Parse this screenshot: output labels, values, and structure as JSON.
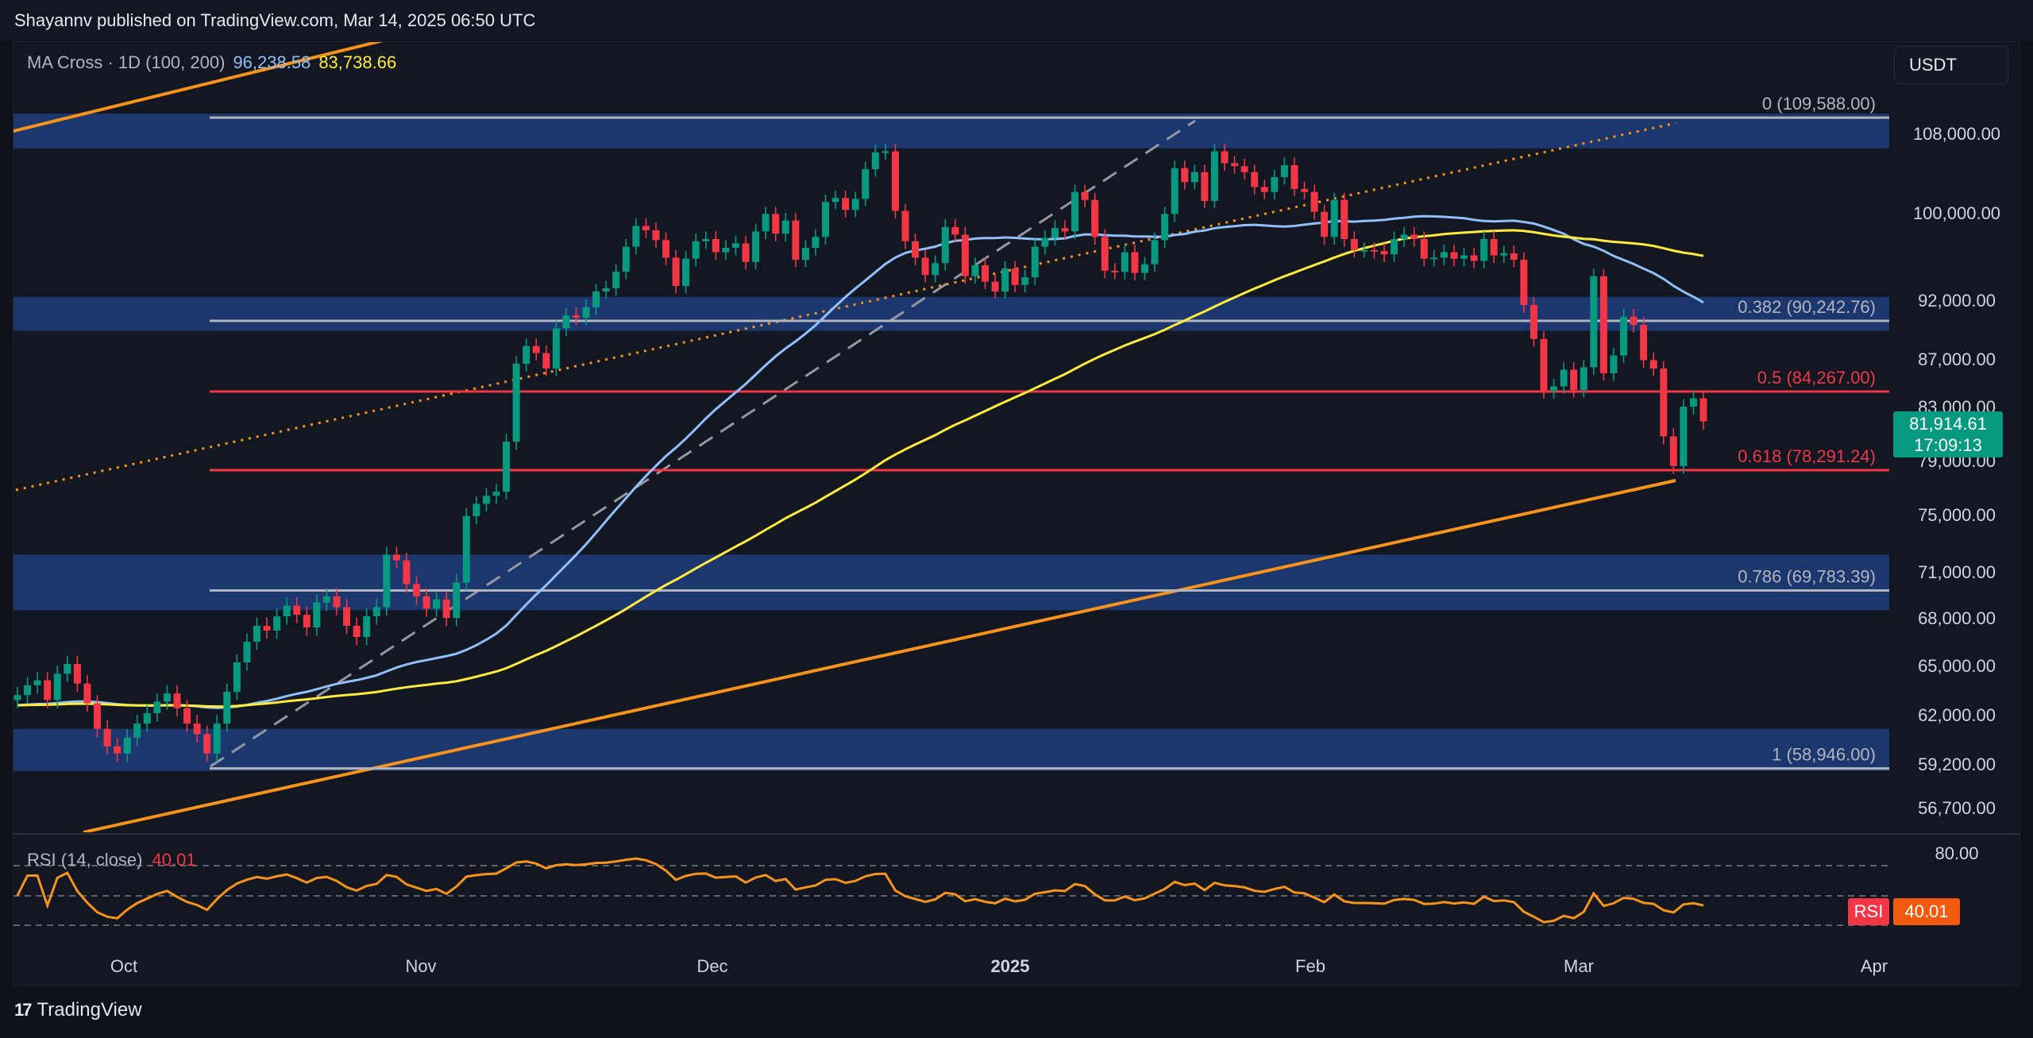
{
  "header": {
    "text": "Shayannv published on TradingView.com, Mar 14, 2025 06:50 UTC"
  },
  "indicator": {
    "name": "MA Cross · 1D (100, 200)",
    "ma100": "96,238.58",
    "ma200": "83,738.66"
  },
  "currency_button": {
    "label": "USDT"
  },
  "price_badge": {
    "price": "81,914.61",
    "countdown": "17:09:13",
    "color": "#089981"
  },
  "rsi": {
    "name": "RSI (14, close)",
    "value": "40.01",
    "badge_label": "RSI",
    "badge_value": "40.01",
    "color": "#f7931a"
  },
  "footer": {
    "brand": "TradingView",
    "logo": "17"
  },
  "chart_data": {
    "type": "candlestick",
    "y_axis_labels": [
      "108,000.00",
      "100,000.00",
      "92,000.00",
      "87,000.00",
      "83,000.00",
      "79,000.00",
      "75,000.00",
      "71,000.00",
      "68,000.00",
      "65,000.00",
      "62,000.00",
      "59,200.00",
      "56,700.00"
    ],
    "x_axis_labels": [
      "Oct",
      "Nov",
      "Dec",
      "2025",
      "Feb",
      "Mar",
      "Apr"
    ],
    "rsi_axis_labels": [
      "80.00"
    ],
    "fib_levels": [
      {
        "label": "0 (109,588.00)",
        "value": 109588,
        "color": "#b2b5be"
      },
      {
        "label": "0.382 (90,242.76)",
        "value": 90242.76,
        "color": "#b2b5be"
      },
      {
        "label": "0.5 (84,267.00)",
        "value": 84267,
        "color": "#f23645"
      },
      {
        "label": "0.618 (78,291.24)",
        "value": 78291.24,
        "color": "#f23645"
      },
      {
        "label": "0.786 (69,783.39)",
        "value": 69783.39,
        "color": "#b2b5be"
      },
      {
        "label": "1 (58,946.00)",
        "value": 58946,
        "color": "#b2b5be"
      }
    ],
    "zones": [
      {
        "low": 106500,
        "high": 110000
      },
      {
        "low": 89400,
        "high": 92300
      },
      {
        "low": 68500,
        "high": 72200
      },
      {
        "low": 58800,
        "high": 61200
      }
    ],
    "close": [
      63200,
      63800,
      64100,
      62900,
      64500,
      65100,
      63900,
      62700,
      61200,
      60200,
      59800,
      60700,
      61500,
      62100,
      62800,
      63300,
      62400,
      61500,
      60900,
      59800,
      61500,
      63400,
      65200,
      66500,
      67500,
      67200,
      68100,
      68800,
      68200,
      67400,
      69000,
      69400,
      68700,
      67500,
      66800,
      68100,
      68700,
      72200,
      71800,
      70200,
      69400,
      68600,
      69200,
      68000,
      70300,
      74900,
      75800,
      76400,
      76700,
      80400,
      86600,
      88100,
      87500,
      86200,
      89600,
      90700,
      90500,
      91400,
      92800,
      93100,
      94600,
      96900,
      98800,
      98400,
      97500,
      95900,
      93300,
      95800,
      97400,
      97600,
      96400,
      96800,
      97200,
      95500,
      98300,
      99900,
      98100,
      99300,
      95700,
      96800,
      97800,
      101100,
      101500,
      100300,
      101400,
      104400,
      106100,
      106200,
      100200,
      97400,
      95900,
      94300,
      95400,
      98700,
      98000,
      94200,
      95200,
      93700,
      92800,
      94900,
      93400,
      94100,
      96900,
      97700,
      98600,
      98300,
      102100,
      101300,
      97800,
      94700,
      94600,
      96400,
      94500,
      95300,
      97500,
      99900,
      104500,
      103100,
      104100,
      101200,
      106200,
      105000,
      104700,
      104100,
      102600,
      102100,
      103600,
      104800,
      102400,
      102100,
      100100,
      97800,
      101300,
      97600,
      96600,
      96600,
      96500,
      96200,
      97600,
      98000,
      97600,
      95800,
      95900,
      96400,
      95800,
      96100,
      95600,
      97600,
      96100,
      96300,
      95700,
      91600,
      88700,
      84300,
      84700,
      86100,
      84400,
      86300,
      94200,
      85800,
      87300,
      90600,
      89900,
      86900,
      86200,
      80800,
      78600,
      83000,
      83700,
      81900
    ]
  }
}
